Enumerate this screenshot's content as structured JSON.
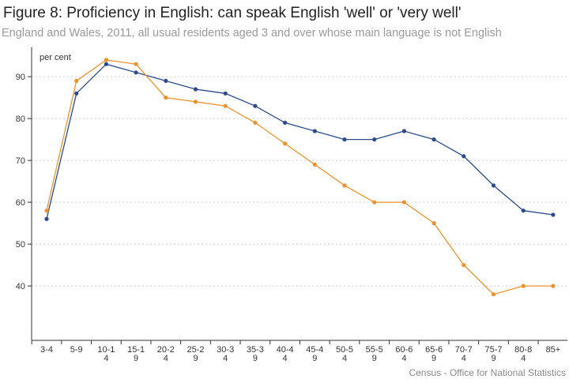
{
  "title": "Figure 8: Proficiency in English: can speak English 'well' or 'very well'",
  "subtitle": "England and Wales, 2011, all usual residents aged 3 and over whose main language is not English",
  "source": "Census - Office for National Statistics",
  "chart_data": {
    "type": "line",
    "ylabel": "per cent",
    "ylim": [
      27,
      97
    ],
    "yticks": [
      40,
      50,
      60,
      70,
      80,
      90
    ],
    "grid": "horizontal dotted",
    "categories": [
      [
        "3-4"
      ],
      [
        "5-9"
      ],
      [
        "10-1",
        "4"
      ],
      [
        "15-1",
        "9"
      ],
      [
        "20-2",
        "4"
      ],
      [
        "25-2",
        "9"
      ],
      [
        "30-3",
        "4"
      ],
      [
        "35-3",
        "9"
      ],
      [
        "40-4",
        "4"
      ],
      [
        "45-4",
        "9"
      ],
      [
        "50-5",
        "4"
      ],
      [
        "55-5",
        "9"
      ],
      [
        "60-6",
        "4"
      ],
      [
        "65-6",
        "9"
      ],
      [
        "70-7",
        "4"
      ],
      [
        "75-7",
        "9"
      ],
      [
        "80-8",
        "4"
      ],
      [
        "85+"
      ]
    ],
    "series": [
      {
        "color": "#2c4a8c",
        "values": [
          56,
          86,
          93,
          91,
          89,
          87,
          86,
          83,
          79,
          77,
          75,
          75,
          77,
          75,
          71,
          64,
          58,
          57
        ]
      },
      {
        "color": "#f0922b",
        "values": [
          58,
          89,
          94,
          93,
          85,
          84,
          83,
          79,
          74,
          69,
          64,
          60,
          60,
          55,
          45,
          38,
          40,
          40
        ]
      }
    ]
  }
}
